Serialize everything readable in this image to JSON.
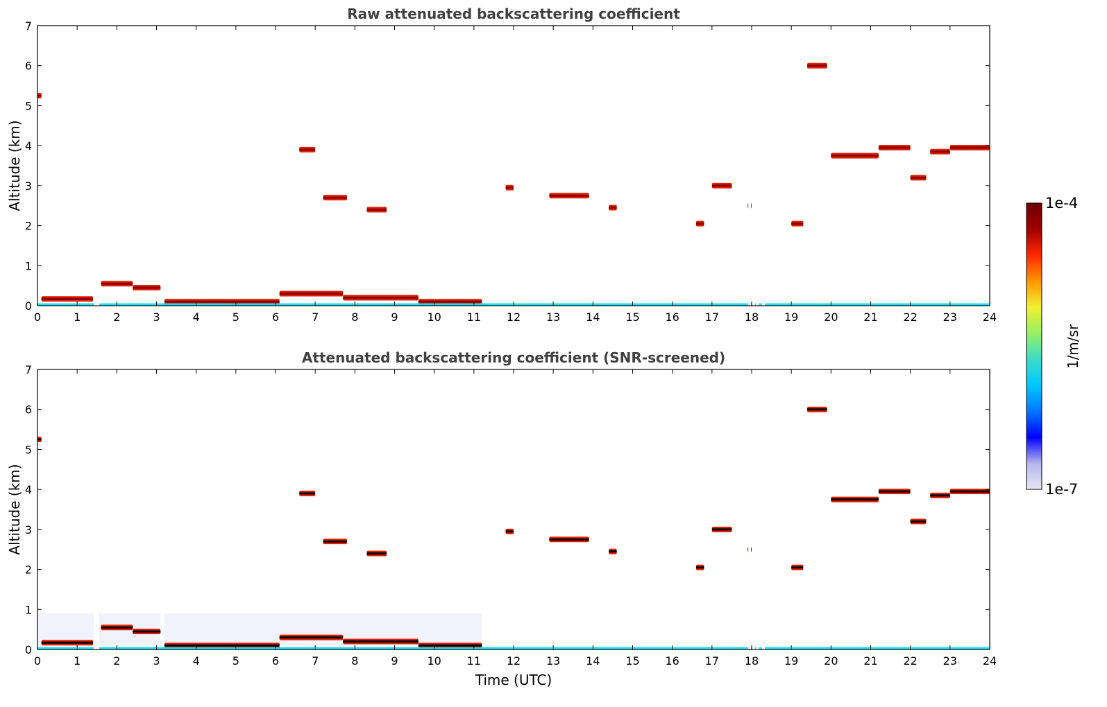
{
  "chart_data": [
    {
      "type": "heatmap",
      "title": "Raw attenuated backscattering coefficient",
      "xlabel": "",
      "ylabel": "Altitude (km)",
      "xlim": [
        0,
        24
      ],
      "ylim": [
        0,
        7
      ],
      "xticks": [
        "0",
        "1",
        "2",
        "3",
        "4",
        "5",
        "6",
        "7",
        "8",
        "9",
        "10",
        "11",
        "12",
        "13",
        "14",
        "15",
        "16",
        "17",
        "18",
        "19",
        "20",
        "21",
        "22",
        "23",
        "24"
      ],
      "yticks": [
        "0",
        "1",
        "2",
        "3",
        "4",
        "5",
        "6",
        "7"
      ],
      "screened": false,
      "features": [
        {
          "x": [
            0.1,
            1.4
          ],
          "y": 0.17,
          "level": "high"
        },
        {
          "x": [
            1.6,
            2.4
          ],
          "y": 0.55,
          "level": "high"
        },
        {
          "x": [
            2.4,
            3.1
          ],
          "y": 0.45,
          "level": "high"
        },
        {
          "x": [
            3.2,
            6.1
          ],
          "y": 0.1,
          "level": "high"
        },
        {
          "x": [
            6.1,
            7.7
          ],
          "y": 0.3,
          "level": "high"
        },
        {
          "x": [
            7.7,
            9.6
          ],
          "y": 0.2,
          "level": "high"
        },
        {
          "x": [
            9.6,
            11.2
          ],
          "y": 0.1,
          "level": "high"
        },
        {
          "x": [
            6.6,
            7.0
          ],
          "y": 3.9,
          "level": "high"
        },
        {
          "x": [
            7.2,
            7.8
          ],
          "y": 2.7,
          "level": "high"
        },
        {
          "x": [
            8.3,
            8.8
          ],
          "y": 2.4,
          "level": "high"
        },
        {
          "x": [
            11.8,
            12.0
          ],
          "y": 2.95,
          "level": "high"
        },
        {
          "x": [
            12.9,
            13.9
          ],
          "y": 2.75,
          "level": "high"
        },
        {
          "x": [
            14.4,
            14.6
          ],
          "y": 2.45,
          "level": "high"
        },
        {
          "x": [
            16.6,
            16.8
          ],
          "y": 2.05,
          "level": "high"
        },
        {
          "x": [
            17.0,
            17.5
          ],
          "y": 3.0,
          "level": "high"
        },
        {
          "x": [
            17.9,
            18.0
          ],
          "y": 2.5,
          "level": "high"
        },
        {
          "x": [
            19.0,
            19.3
          ],
          "y": 2.05,
          "level": "high"
        },
        {
          "x": [
            19.4,
            19.9
          ],
          "y": 6.0,
          "level": "high"
        },
        {
          "x": [
            20.0,
            21.2
          ],
          "y": 3.75,
          "level": "high"
        },
        {
          "x": [
            21.2,
            22.0
          ],
          "y": 3.95,
          "level": "high"
        },
        {
          "x": [
            22.0,
            22.4
          ],
          "y": 3.2,
          "level": "high"
        },
        {
          "x": [
            22.5,
            23.0
          ],
          "y": 3.85,
          "level": "high"
        },
        {
          "x": [
            23.0,
            24.0
          ],
          "y": 3.95,
          "level": "high"
        },
        {
          "x": [
            0.0,
            0.1
          ],
          "y": 5.25,
          "level": "high"
        }
      ],
      "data_gaps": [
        1.45,
        1.52,
        17.95,
        18.05,
        18.15,
        18.3
      ]
    },
    {
      "type": "heatmap",
      "title": "Attenuated backscattering coefficient (SNR-screened)",
      "xlabel": "Time (UTC)",
      "ylabel": "Altitude (km)",
      "xlim": [
        0,
        24
      ],
      "ylim": [
        0,
        7
      ],
      "xticks": [
        "0",
        "1",
        "2",
        "3",
        "4",
        "5",
        "6",
        "7",
        "8",
        "9",
        "10",
        "11",
        "12",
        "13",
        "14",
        "15",
        "16",
        "17",
        "18",
        "19",
        "20",
        "21",
        "22",
        "23",
        "24"
      ],
      "yticks": [
        "0",
        "1",
        "2",
        "3",
        "4",
        "5",
        "6",
        "7"
      ],
      "screened": true,
      "features": [
        {
          "x": [
            0.1,
            1.4
          ],
          "y": 0.17,
          "level": "high"
        },
        {
          "x": [
            1.6,
            2.4
          ],
          "y": 0.55,
          "level": "high"
        },
        {
          "x": [
            2.4,
            3.1
          ],
          "y": 0.45,
          "level": "high"
        },
        {
          "x": [
            3.2,
            6.1
          ],
          "y": 0.1,
          "level": "high"
        },
        {
          "x": [
            6.1,
            7.7
          ],
          "y": 0.3,
          "level": "high"
        },
        {
          "x": [
            7.7,
            9.6
          ],
          "y": 0.2,
          "level": "high"
        },
        {
          "x": [
            9.6,
            11.2
          ],
          "y": 0.1,
          "level": "high"
        },
        {
          "x": [
            6.6,
            7.0
          ],
          "y": 3.9,
          "level": "high"
        },
        {
          "x": [
            7.2,
            7.8
          ],
          "y": 2.7,
          "level": "high"
        },
        {
          "x": [
            8.3,
            8.8
          ],
          "y": 2.4,
          "level": "high"
        },
        {
          "x": [
            11.8,
            12.0
          ],
          "y": 2.95,
          "level": "high"
        },
        {
          "x": [
            12.9,
            13.9
          ],
          "y": 2.75,
          "level": "high"
        },
        {
          "x": [
            14.4,
            14.6
          ],
          "y": 2.45,
          "level": "high"
        },
        {
          "x": [
            16.6,
            16.8
          ],
          "y": 2.05,
          "level": "high"
        },
        {
          "x": [
            17.0,
            17.5
          ],
          "y": 3.0,
          "level": "high"
        },
        {
          "x": [
            17.9,
            18.0
          ],
          "y": 2.5,
          "level": "high"
        },
        {
          "x": [
            19.0,
            19.3
          ],
          "y": 2.05,
          "level": "high"
        },
        {
          "x": [
            19.4,
            19.9
          ],
          "y": 6.0,
          "level": "high"
        },
        {
          "x": [
            20.0,
            21.2
          ],
          "y": 3.75,
          "level": "high"
        },
        {
          "x": [
            21.2,
            22.0
          ],
          "y": 3.95,
          "level": "high"
        },
        {
          "x": [
            22.0,
            22.4
          ],
          "y": 3.2,
          "level": "high"
        },
        {
          "x": [
            22.5,
            23.0
          ],
          "y": 3.85,
          "level": "high"
        },
        {
          "x": [
            23.0,
            24.0
          ],
          "y": 3.95,
          "level": "high"
        },
        {
          "x": [
            0.0,
            0.1
          ],
          "y": 5.25,
          "level": "high"
        }
      ],
      "data_gaps": [
        1.45,
        1.52,
        17.95,
        18.05,
        18.15,
        18.3
      ]
    }
  ],
  "colorbar": {
    "label": "1/m/sr",
    "min_label": "1e-7",
    "max_label": "1e-4",
    "scale": "log",
    "colormap": [
      "#e6e6f5",
      "#b4b4ec",
      "#0000ff",
      "#0078ff",
      "#00c8ff",
      "#3cdcc8",
      "#96f064",
      "#f0f032",
      "#ff9600",
      "#ff2800",
      "#a00000",
      "#6e0000"
    ]
  }
}
